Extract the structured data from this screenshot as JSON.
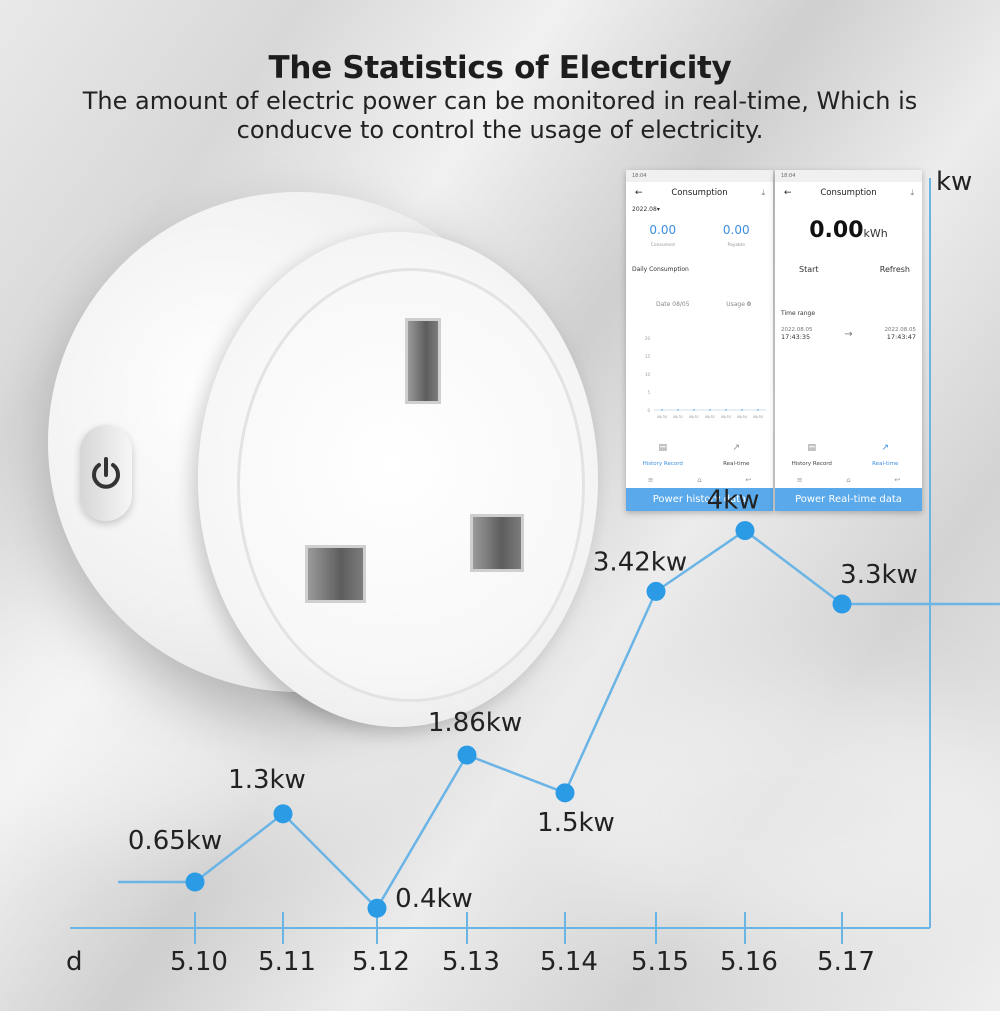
{
  "header": {
    "title": "The Statistics of Electricity",
    "subtitle_line1": "The amount of electric power can be monitored in real-time, Which is",
    "subtitle_line2": "conducve to control the usage of electricity."
  },
  "phone_history": {
    "time": "18:04",
    "title": "Consumption",
    "month": "2022.08",
    "consumed_value": "0.00",
    "consumed_label": "Consumed",
    "payable_value": "0.00",
    "payable_label": "Payable",
    "daily_label": "Daily Consumption",
    "date_text": "Date 08/05",
    "usage_text": "Usage",
    "usage_value": "0",
    "y_ticks": [
      "20",
      "15",
      "10",
      "5",
      "0"
    ],
    "x_ticks": [
      "08/30",
      "08/31",
      "08/01",
      "08/02",
      "08/03",
      "08/04",
      "08/05"
    ],
    "tab_history": "History Record",
    "tab_realtime": "Real-time",
    "banner": "Power history data"
  },
  "phone_realtime": {
    "time": "18:04",
    "title": "Consumption",
    "reading": "0.00",
    "unit": "kWh",
    "start_label": "Start",
    "refresh_label": "Refresh",
    "time_range_label": "Time range",
    "range_start_date": "2022.08.05",
    "range_start_time": "17:43:35",
    "range_end_date": "2022.08.05",
    "range_end_time": "17:43:47",
    "tab_history": "History Record",
    "tab_realtime": "Real-time",
    "banner": "Power Real-time data"
  },
  "colors": {
    "line": "#6ab4e6",
    "point": "#2b9be6",
    "axis": "#6ab4e6",
    "text": "#222222"
  },
  "chart_data": {
    "type": "line",
    "xlabel": "d",
    "ylabel": "kw",
    "categories": [
      "5.10",
      "5.11",
      "5.12",
      "5.13",
      "5.14",
      "5.15",
      "5.16",
      "5.17"
    ],
    "values": [
      0.65,
      1.3,
      0.4,
      1.86,
      1.5,
      3.42,
      4,
      3.3
    ],
    "data_labels": [
      "0.65kw",
      "1.3kw",
      "0.4kw",
      "1.86kw",
      "1.5kw",
      "3.42kw",
      "4kw",
      "3.3kw"
    ],
    "ylim": [
      0,
      4.5
    ],
    "grid": false,
    "legend": "none"
  }
}
